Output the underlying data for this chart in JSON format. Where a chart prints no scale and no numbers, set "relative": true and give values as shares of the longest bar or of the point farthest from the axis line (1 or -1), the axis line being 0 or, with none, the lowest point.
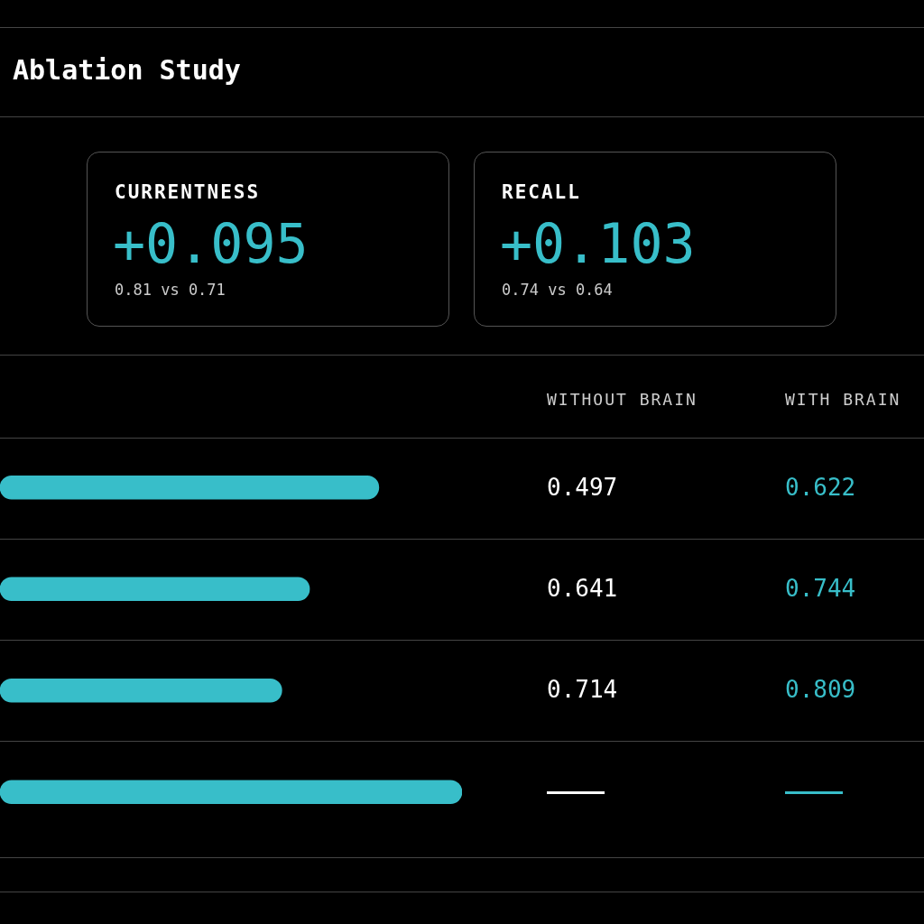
{
  "chart_data": {
    "type": "bar",
    "title": "Ablation Study",
    "orientation": "horizontal",
    "relative": true,
    "categories": [
      null,
      null,
      null,
      null
    ],
    "values": [
      0.82,
      0.67,
      0.61,
      1
    ],
    "color": "#38bec9",
    "annotations": [
      "CURRENTNESS",
      "+0.095",
      "0.81 vs 0.71",
      "RECALL",
      "+0.103",
      "0.74 vs 0.64",
      "WITHOUT BRAIN",
      "WITH BRAIN",
      "0.497",
      "0.622",
      "0.641",
      "0.744",
      "0.714",
      "0.809"
    ]
  }
}
